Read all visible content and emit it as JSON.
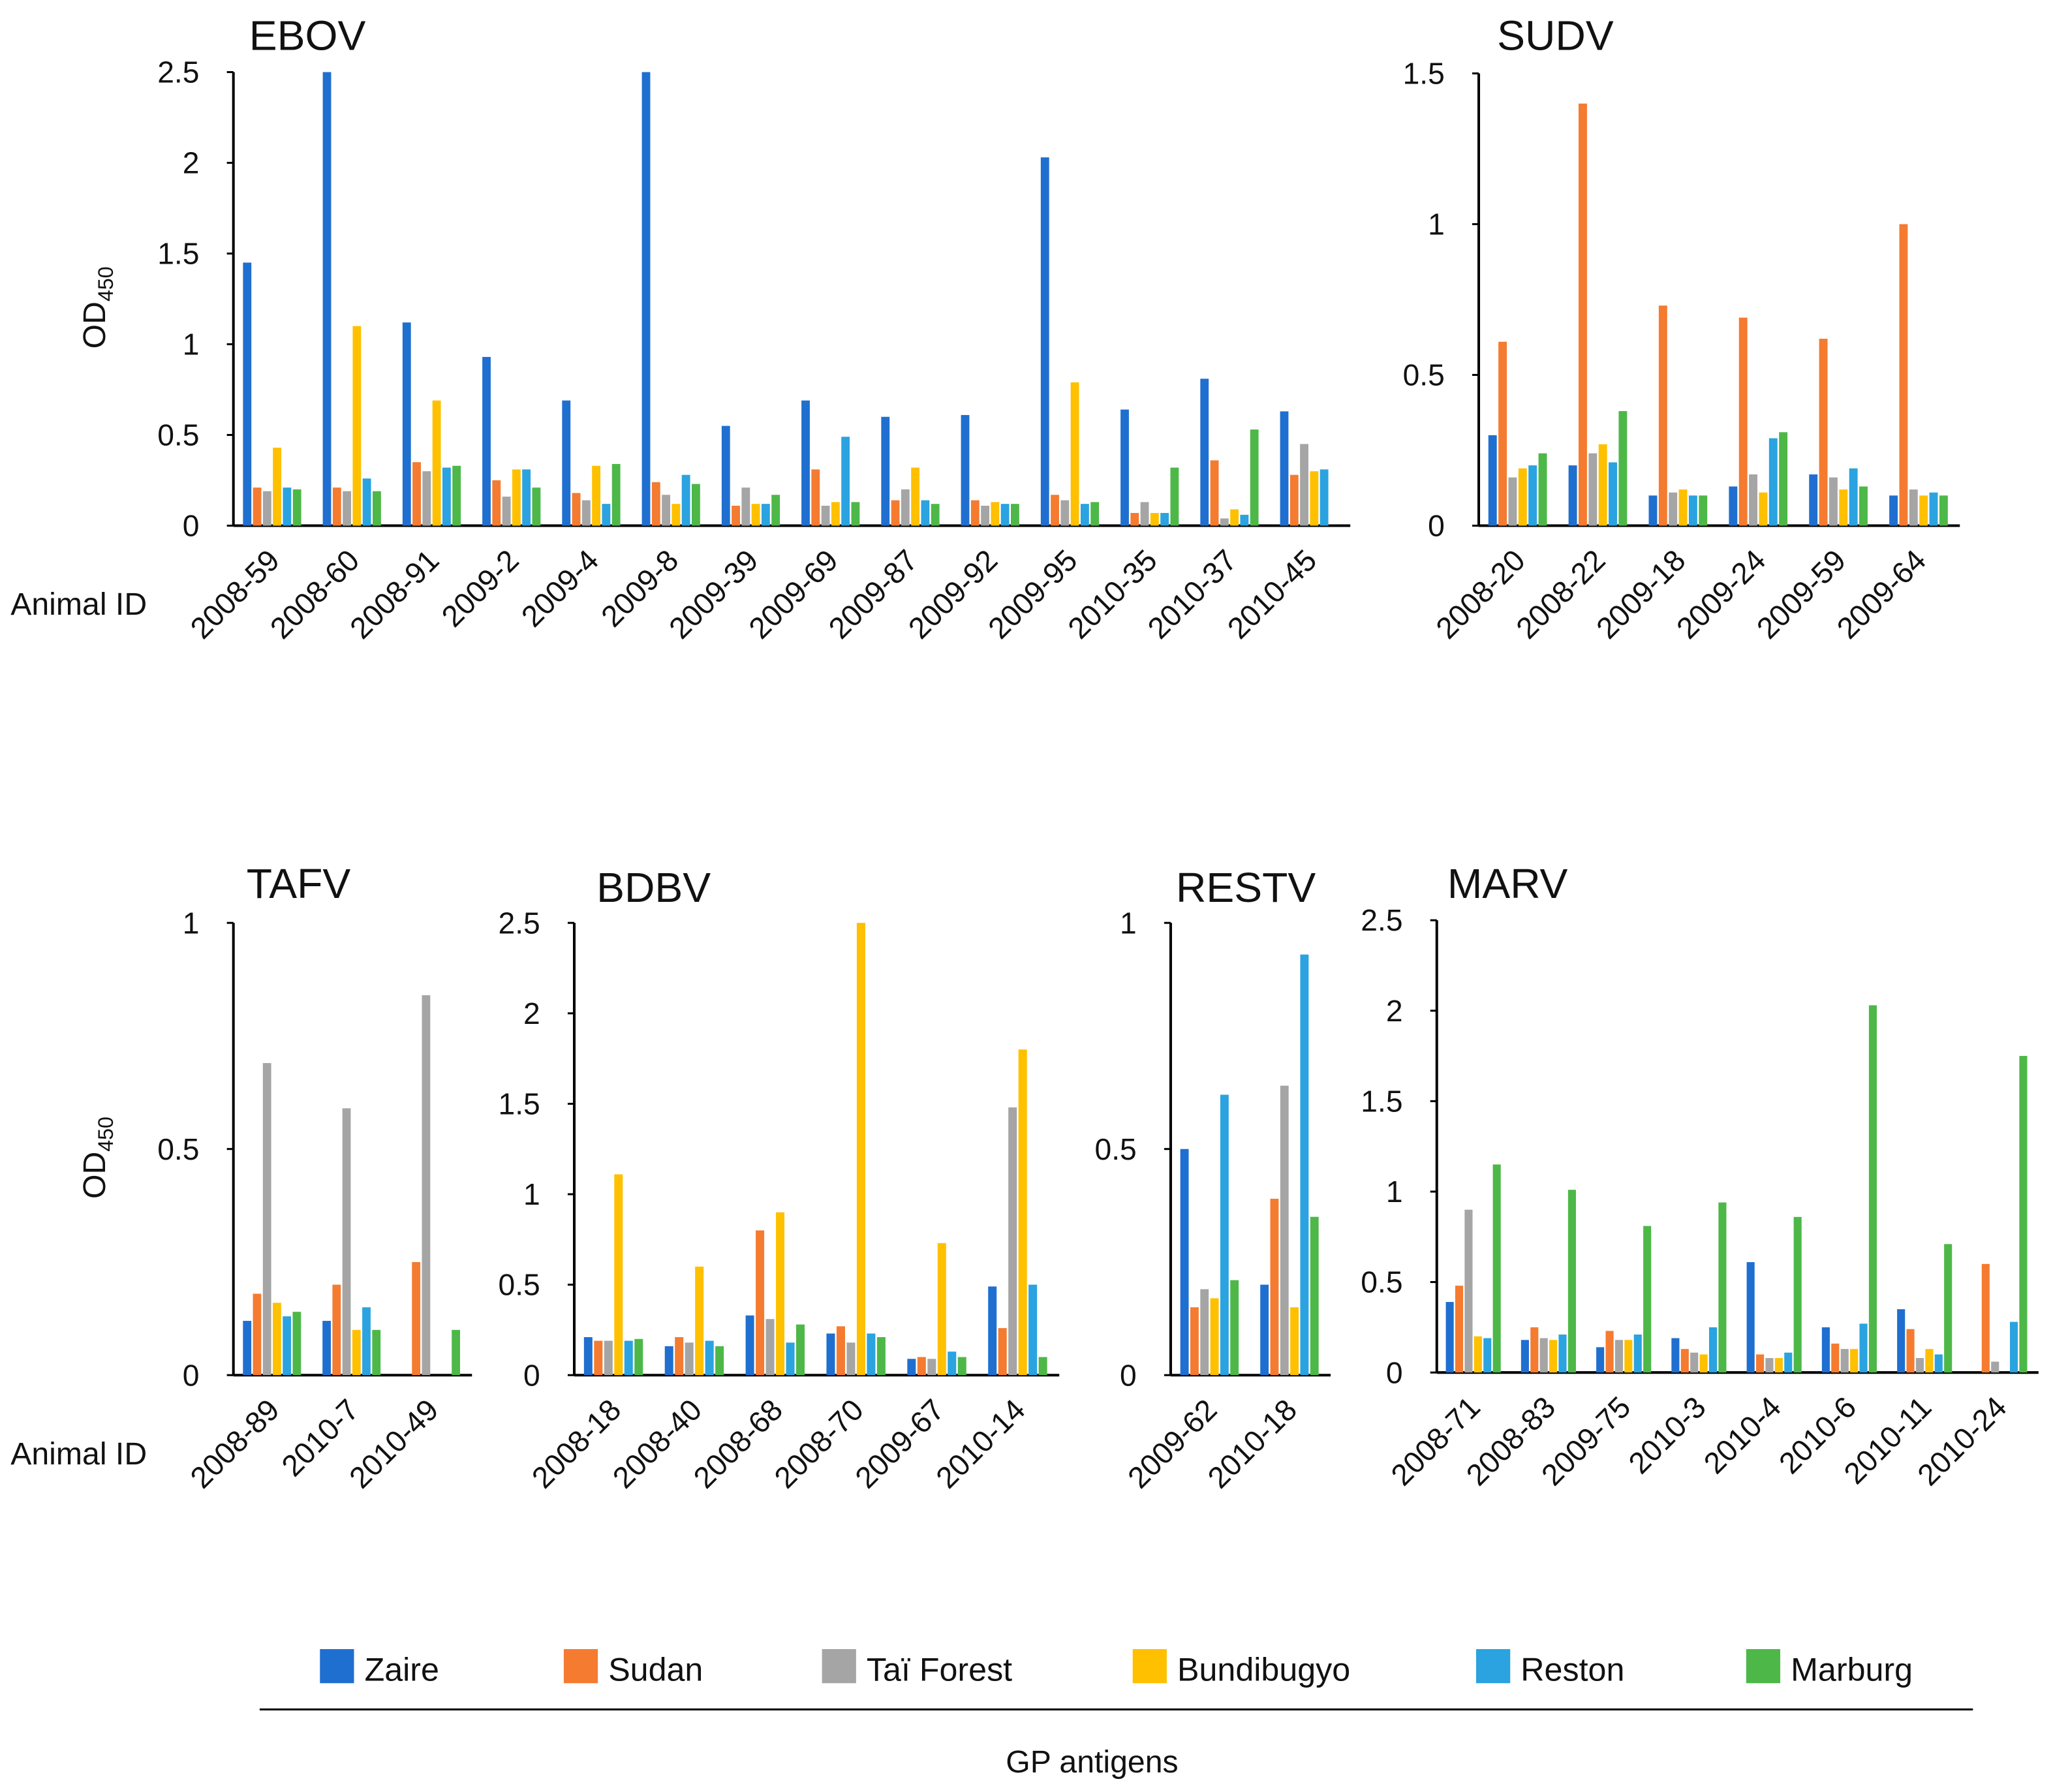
{
  "chart_data": {
    "type": "bar",
    "ylabel_main": "OD",
    "ylabel_sub": "450",
    "xlabel": "Animal ID",
    "legend_title": "GP antigens",
    "legend_placement": "bottom",
    "series": [
      {
        "name": "Zaire",
        "color": "#1f6fd0"
      },
      {
        "name": "Sudan",
        "color": "#f47b30"
      },
      {
        "name": "Taï Forest",
        "color": "#a5a5a5"
      },
      {
        "name": "Bundibugyo",
        "color": "#ffc000"
      },
      {
        "name": "Reston",
        "color": "#2aa3e0"
      },
      {
        "name": "Marburg",
        "color": "#4db848"
      }
    ],
    "panels": [
      {
        "title": "EBOV",
        "ylim": [
          0,
          2.5
        ],
        "yticks": [
          "0",
          "0.5",
          "1",
          "1.5",
          "2",
          "2.5"
        ],
        "show_ylabel": true,
        "show_xlabel": true,
        "categories": [
          "2008-59",
          "2008-60",
          "2008-91",
          "2009-2",
          "2009-4",
          "2009-8",
          "2009-39",
          "2009-69",
          "2009-87",
          "2009-92",
          "2009-95",
          "2010-35",
          "2010-37",
          "2010-45"
        ],
        "values": [
          [
            1.45,
            0.21,
            0.19,
            0.43,
            0.21,
            0.2
          ],
          [
            2.5,
            0.21,
            0.19,
            1.1,
            0.26,
            0.19
          ],
          [
            1.12,
            0.35,
            0.3,
            0.69,
            0.32,
            0.33
          ],
          [
            0.93,
            0.25,
            0.16,
            0.31,
            0.31,
            0.21
          ],
          [
            0.69,
            0.18,
            0.14,
            0.33,
            0.12,
            0.34
          ],
          [
            2.5,
            0.24,
            0.17,
            0.12,
            0.28,
            0.23
          ],
          [
            0.55,
            0.11,
            0.21,
            0.12,
            0.12,
            0.17
          ],
          [
            0.69,
            0.31,
            0.11,
            0.13,
            0.49,
            0.13
          ],
          [
            0.6,
            0.14,
            0.2,
            0.32,
            0.14,
            0.12
          ],
          [
            0.61,
            0.14,
            0.11,
            0.13,
            0.12,
            0.12
          ],
          [
            2.03,
            0.17,
            0.14,
            0.79,
            0.12,
            0.13
          ],
          [
            0.64,
            0.07,
            0.13,
            0.07,
            0.07,
            0.32
          ],
          [
            0.81,
            0.36,
            0.04,
            0.09,
            0.06,
            0.53
          ],
          [
            0.63,
            0.28,
            0.45,
            0.3,
            0.31,
            0
          ]
        ]
      },
      {
        "title": "SUDV",
        "ylim": [
          0,
          1.5
        ],
        "yticks": [
          "0",
          "0.5",
          "1",
          "1.5"
        ],
        "show_ylabel": false,
        "show_xlabel": false,
        "categories": [
          "2008-20",
          "2008-22",
          "2009-18",
          "2009-24",
          "2009-59",
          "2009-64"
        ],
        "values": [
          [
            0.3,
            0.61,
            0.16,
            0.19,
            0.2,
            0.24
          ],
          [
            0.2,
            1.4,
            0.24,
            0.27,
            0.21,
            0.38
          ],
          [
            0.1,
            0.73,
            0.11,
            0.12,
            0.1,
            0.1
          ],
          [
            0.13,
            0.69,
            0.17,
            0.11,
            0.29,
            0.31
          ],
          [
            0.17,
            0.62,
            0.16,
            0.12,
            0.19,
            0.13
          ],
          [
            0.1,
            1.0,
            0.12,
            0.1,
            0.11,
            0.1
          ]
        ]
      },
      {
        "title": "TAFV",
        "ylim": [
          0,
          1
        ],
        "yticks": [
          "0",
          "0.5",
          "1"
        ],
        "show_ylabel": true,
        "show_xlabel": true,
        "categories": [
          "2008-89",
          "2010-7",
          "2010-49"
        ],
        "values": [
          [
            0.12,
            0.18,
            0.69,
            0.16,
            0.13,
            0.14
          ],
          [
            0.12,
            0.2,
            0.59,
            0.1,
            0.15,
            0.1
          ],
          [
            0,
            0.25,
            0.84,
            0,
            0,
            0.1
          ]
        ]
      },
      {
        "title": "BDBV",
        "ylim": [
          0,
          2.5
        ],
        "yticks": [
          "0",
          "0.5",
          "1",
          "1.5",
          "2",
          "2.5"
        ],
        "show_ylabel": false,
        "show_xlabel": false,
        "categories": [
          "2008-18",
          "2008-40",
          "2008-68",
          "2008-70",
          "2009-67",
          "2010-14"
        ],
        "values": [
          [
            0.21,
            0.19,
            0.19,
            1.11,
            0.19,
            0.2
          ],
          [
            0.16,
            0.21,
            0.18,
            0.6,
            0.19,
            0.16
          ],
          [
            0.33,
            0.8,
            0.31,
            0.9,
            0.18,
            0.28
          ],
          [
            0.23,
            0.27,
            0.18,
            2.5,
            0.23,
            0.21
          ],
          [
            0.09,
            0.1,
            0.09,
            0.73,
            0.13,
            0.1
          ],
          [
            0.49,
            0.26,
            1.48,
            1.8,
            0.5,
            0.1
          ]
        ]
      },
      {
        "title": "RESTV",
        "ylim": [
          0,
          1
        ],
        "yticks": [
          "0",
          "0.5",
          "1"
        ],
        "show_ylabel": false,
        "show_xlabel": false,
        "categories": [
          "2009-62",
          "2010-18"
        ],
        "values": [
          [
            0.5,
            0.15,
            0.19,
            0.17,
            0.62,
            0.21
          ],
          [
            0.2,
            0.39,
            0.64,
            0.15,
            0.93,
            0.35
          ]
        ]
      },
      {
        "title": "MARV",
        "ylim": [
          0,
          2.5
        ],
        "yticks": [
          "0",
          "0.5",
          "1",
          "1.5",
          "2",
          "2.5"
        ],
        "show_ylabel": false,
        "show_xlabel": false,
        "categories": [
          "2008-71",
          "2008-83",
          "2009-75",
          "2010-3",
          "2010-4",
          "2010-6",
          "2010-11",
          "2010-24"
        ],
        "values": [
          [
            0.39,
            0.48,
            0.9,
            0.2,
            0.19,
            1.15
          ],
          [
            0.18,
            0.25,
            0.19,
            0.18,
            0.21,
            1.01
          ],
          [
            0.14,
            0.23,
            0.18,
            0.18,
            0.21,
            0.81
          ],
          [
            0.19,
            0.13,
            0.11,
            0.1,
            0.25,
            0.94
          ],
          [
            0.61,
            0.1,
            0.08,
            0.08,
            0.11,
            0.86
          ],
          [
            0.25,
            0.16,
            0.13,
            0.13,
            0.27,
            2.03
          ],
          [
            0.35,
            0.24,
            0.08,
            0.13,
            0.1,
            0.71
          ],
          [
            0,
            0.6,
            0.06,
            0,
            0.28,
            1.75
          ]
        ]
      }
    ]
  }
}
